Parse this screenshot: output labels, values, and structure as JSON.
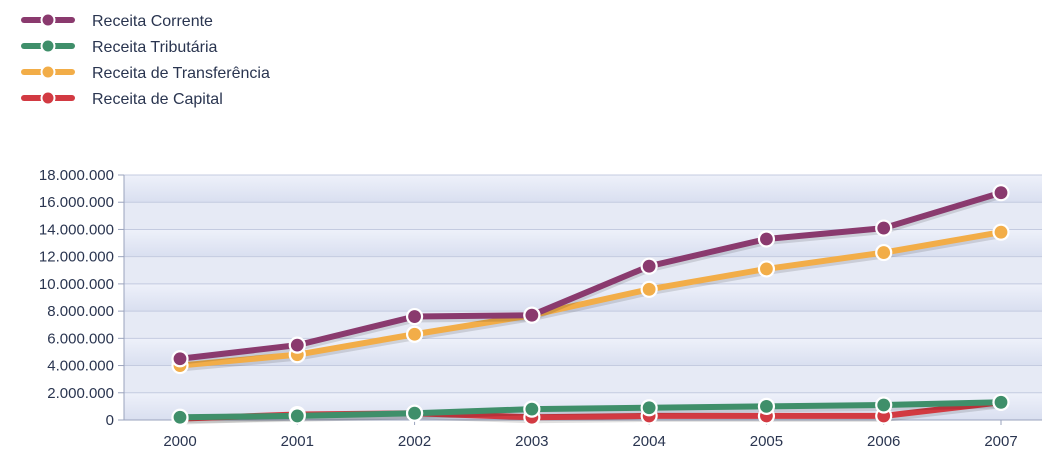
{
  "chart_data": {
    "type": "line",
    "title": "",
    "xlabel": "",
    "ylabel": "",
    "categories": [
      "2000",
      "2001",
      "2002",
      "2003",
      "2004",
      "2005",
      "2006",
      "2007"
    ],
    "ylim": [
      0,
      18000000
    ],
    "yticks": [
      0,
      2000000,
      4000000,
      6000000,
      8000000,
      10000000,
      12000000,
      14000000,
      16000000,
      18000000
    ],
    "ytick_labels": [
      "0",
      "2.000.000",
      "4.000.000",
      "6.000.000",
      "8.000.000",
      "10.000.000",
      "12.000.000",
      "14.000.000",
      "16.000.000",
      "18.000.000"
    ],
    "grid": true,
    "legend_position": "top-left",
    "series": [
      {
        "name": "Receita Corrente",
        "color": "#8a3a6e",
        "values": [
          4500000,
          5500000,
          7600000,
          7700000,
          11300000,
          13300000,
          14100000,
          16700000
        ]
      },
      {
        "name": "Receita Tributária",
        "color": "#3f8f6a",
        "values": [
          200000,
          300000,
          500000,
          800000,
          900000,
          1000000,
          1100000,
          1300000
        ]
      },
      {
        "name": "Receita de Transferência",
        "color": "#f2ad48",
        "values": [
          4000000,
          4800000,
          6300000,
          7700000,
          9600000,
          11100000,
          12300000,
          13800000
        ]
      },
      {
        "name": "Receita de Capital",
        "color": "#d23a42",
        "values": [
          100000,
          400000,
          500000,
          200000,
          300000,
          300000,
          300000,
          1300000
        ]
      }
    ]
  }
}
